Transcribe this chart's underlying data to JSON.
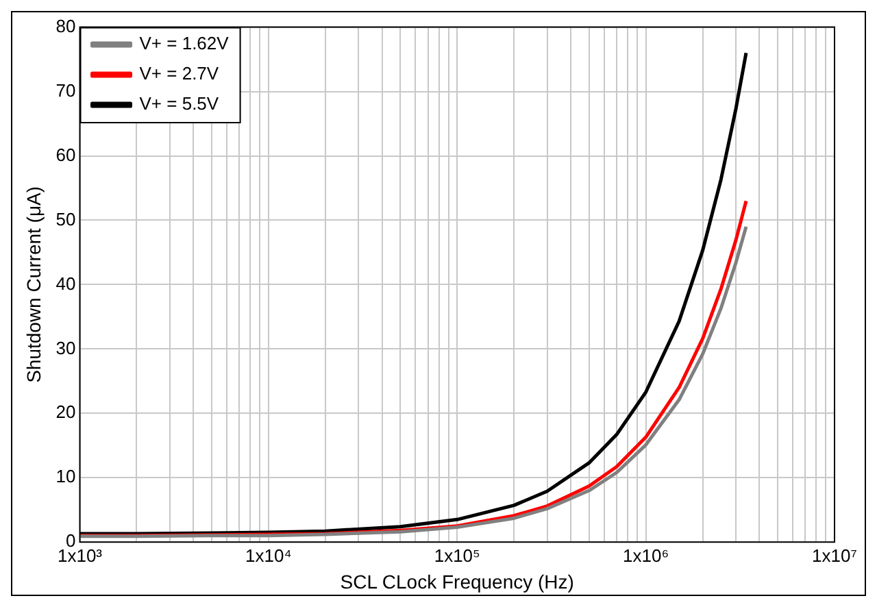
{
  "chart_data": {
    "type": "line",
    "xlabel": "SCL CLock Frequency (Hz)",
    "ylabel": "Shutdown Current (μA)",
    "x": [
      1000,
      2000,
      5000,
      10000,
      20000,
      50000,
      100000,
      200000,
      300000,
      500000,
      700000,
      1000000,
      1500000,
      2000000,
      2500000,
      3000000,
      3400000
    ],
    "series": [
      {
        "name": "V+ = 1.62V",
        "color": "#808080",
        "values": [
          0.9,
          0.9,
          1,
          1,
          1.2,
          1.6,
          2.3,
          3.7,
          5.2,
          8,
          10.8,
          15.1,
          22.1,
          29.2,
          36.3,
          43.4,
          49
        ]
      },
      {
        "name": "V+ = 2.7V",
        "color": "#ff0000",
        "values": [
          1,
          1,
          1.1,
          1.2,
          1.3,
          1.8,
          2.5,
          4.1,
          5.6,
          8.7,
          11.7,
          16.3,
          24,
          31.6,
          39.3,
          46.9,
          53
        ]
      },
      {
        "name": "V+ = 5.5V",
        "color": "#000000",
        "values": [
          1.3,
          1.3,
          1.4,
          1.5,
          1.7,
          2.4,
          3.5,
          5.7,
          7.9,
          12.3,
          16.7,
          23.3,
          34.3,
          45.3,
          56.3,
          67.3,
          76
        ]
      }
    ],
    "log": "x",
    "xlim": [
      1000,
      10000000
    ],
    "xticks": [
      {
        "value": 1000,
        "label": "1x10³"
      },
      {
        "value": 10000,
        "label": "1x10⁴"
      },
      {
        "value": 100000,
        "label": "1x10⁵"
      },
      {
        "value": 1000000,
        "label": "1x10⁶"
      },
      {
        "value": 10000000,
        "label": "1x10⁷"
      }
    ],
    "ylim": [
      0,
      80
    ],
    "yticks": [
      0,
      10,
      20,
      30,
      40,
      50,
      60,
      70,
      80
    ],
    "grid": true,
    "legend": "top left",
    "marker": "none",
    "line_style": "solid"
  }
}
